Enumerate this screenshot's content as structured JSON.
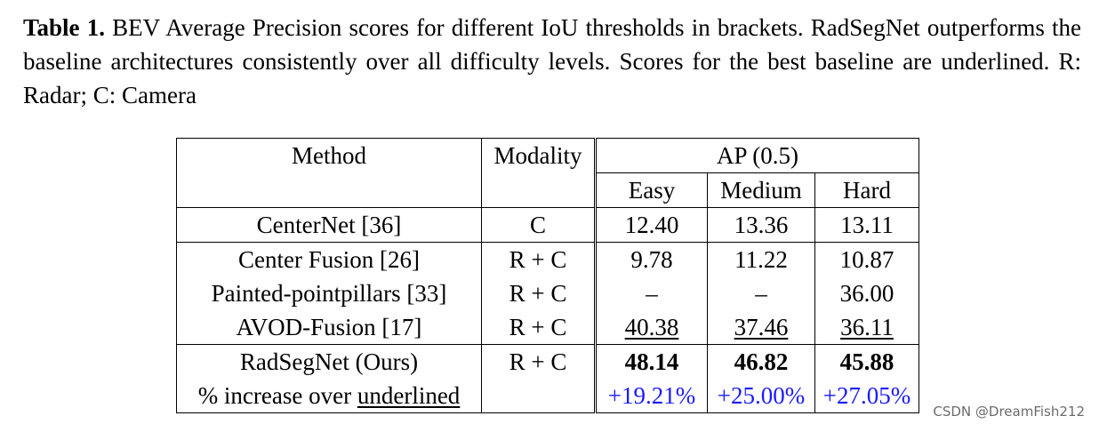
{
  "caption": {
    "label": "Table 1.",
    "text": " BEV Average Precision scores for different IoU thresholds in brackets. RadSegNet outperforms the baseline architectures consistently over all difficulty levels. Scores for the best baseline are underlined. R: Radar; C: Camera"
  },
  "table": {
    "headers": {
      "method": "Method",
      "modality": "Modality",
      "ap": "AP (0.5)",
      "easy": "Easy",
      "medium": "Medium",
      "hard": "Hard"
    },
    "rows": [
      {
        "method": "CenterNet [36]",
        "modality": "C",
        "easy": "12.40",
        "medium": "13.36",
        "hard": "13.11"
      },
      {
        "method": "Center Fusion [26]",
        "modality": "R + C",
        "easy": "9.78",
        "medium": "11.22",
        "hard": "10.87"
      },
      {
        "method": "Painted-pointpillars [33]",
        "modality": "R + C",
        "easy": "–",
        "medium": "–",
        "hard": "36.00"
      },
      {
        "method": "AVOD-Fusion [17]",
        "modality": "R + C",
        "easy": "40.38",
        "medium": "37.46",
        "hard": "36.11"
      },
      {
        "method": "RadSegNet (Ours)",
        "modality": "R + C",
        "easy": "48.14",
        "medium": "46.82",
        "hard": "45.88"
      }
    ],
    "increase": {
      "label_prefix": "% increase over ",
      "label_underlined": "underlined",
      "easy": "+19.21%",
      "medium": "+25.00%",
      "hard": "+27.05%"
    }
  },
  "watermark": "CSDN @DreamFish212",
  "colors": {
    "increase_text": "#1a1aff",
    "watermark": "#6b6b6b"
  }
}
